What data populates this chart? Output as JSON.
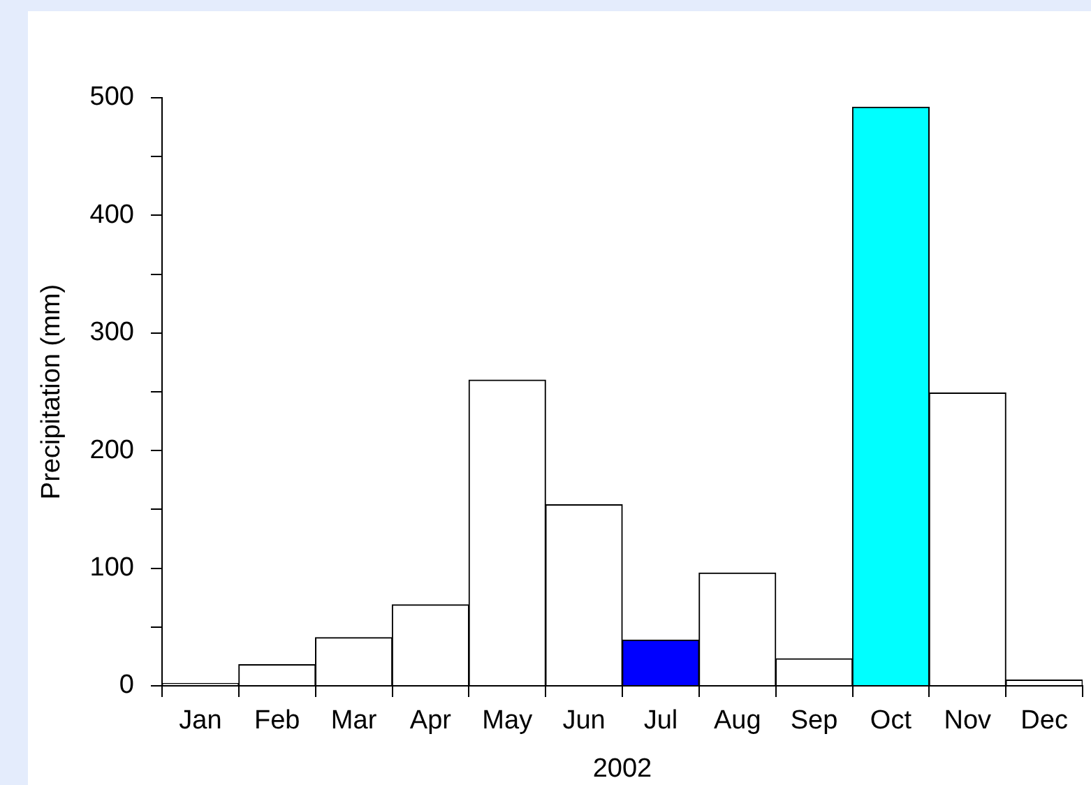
{
  "chart_data": {
    "type": "bar",
    "xlabel": "2002",
    "ylabel": "Precipitation (mm)",
    "categories": [
      "Jan",
      "Feb",
      "Mar",
      "Apr",
      "May",
      "Jun",
      "Jul",
      "Aug",
      "Sep",
      "Oct",
      "Nov",
      "Dec"
    ],
    "values": [
      2,
      18,
      41,
      69,
      260,
      154,
      39,
      96,
      23,
      492,
      249,
      5
    ],
    "colors": [
      "#ffffff",
      "#ffffff",
      "#ffffff",
      "#ffffff",
      "#ffffff",
      "#ffffff",
      "#0000ff",
      "#ffffff",
      "#ffffff",
      "#00ffff",
      "#ffffff",
      "#ffffff"
    ],
    "ylim": [
      0,
      500
    ],
    "yticks": [
      0,
      {
        "value": 50,
        "label": null
      },
      100,
      {
        "value": 150,
        "label": null
      },
      200,
      {
        "value": 250,
        "label": null
      },
      300,
      {
        "value": 350,
        "label": null
      },
      400,
      {
        "value": 450,
        "label": null
      },
      500
    ],
    "grid": false
  }
}
